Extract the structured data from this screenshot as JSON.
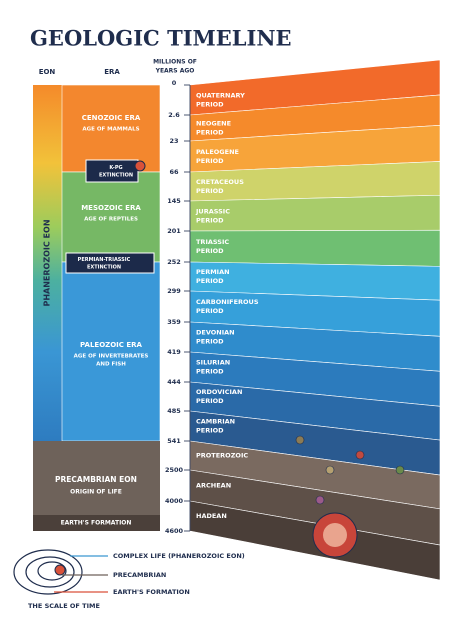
{
  "title": "GEOLOGIC TIMELINE",
  "headers": {
    "eon": "EON",
    "era": "ERA",
    "mya": [
      "MILLIONS OF",
      "YEARS AGO"
    ]
  },
  "phanerozoic": "PHANEROZOIC EON",
  "eras": [
    {
      "name": "CENOZOIC ERA",
      "sub": [
        "AGE OF MAMMALS"
      ]
    },
    {
      "name": "MESOZOIC ERA",
      "sub": [
        "AGE OF REPTILES"
      ]
    },
    {
      "name": "PALEOZOIC ERA",
      "sub": [
        "AGE OF INVERTEBRATES",
        "AND FISH"
      ]
    }
  ],
  "extinctions": [
    [
      "K-PG",
      "EXTINCTION"
    ],
    [
      "PERMIAN-TRIASSIC",
      "EXTINCTION"
    ]
  ],
  "precambrian": {
    "name": "PRECAMBRIAN EON",
    "sub": "ORIGIN OF LIFE",
    "formation": "EARTH'S FORMATION"
  },
  "numbers": [
    0,
    2.6,
    23,
    66,
    145,
    201,
    252,
    299,
    359,
    419,
    444,
    485,
    541,
    2500,
    4000,
    4600
  ],
  "periods": [
    [
      "QUATERNARY",
      "PERIOD"
    ],
    [
      "NEOGENE",
      "PERIOD"
    ],
    [
      "PALEOGENE",
      "PERIOD"
    ],
    [
      "CRETACEOUS",
      "PERIOD"
    ],
    [
      "JURASSIC",
      "PERIOD"
    ],
    [
      "TRIASSIC",
      "PERIOD"
    ],
    [
      "PERMIAN",
      "PERIOD"
    ],
    [
      "CARBONIFEROUS",
      "PERIOD"
    ],
    [
      "DEVONIAN",
      "PERIOD"
    ],
    [
      "SILURIAN",
      "PERIOD"
    ],
    [
      "ORDOVICIAN",
      "PERIOD"
    ],
    [
      "CAMBRIAN",
      "PERIOD"
    ],
    [
      "PROTEROZOIC"
    ],
    [
      "ARCHEAN"
    ],
    [
      "HADEAN"
    ]
  ],
  "legend": {
    "items": [
      "COMPLEX LIFE (PHANEROZOIC EON)",
      "PRECAMBRIAN",
      "EARTH'S FORMATION"
    ],
    "caption": "THE SCALE OF TIME"
  }
}
